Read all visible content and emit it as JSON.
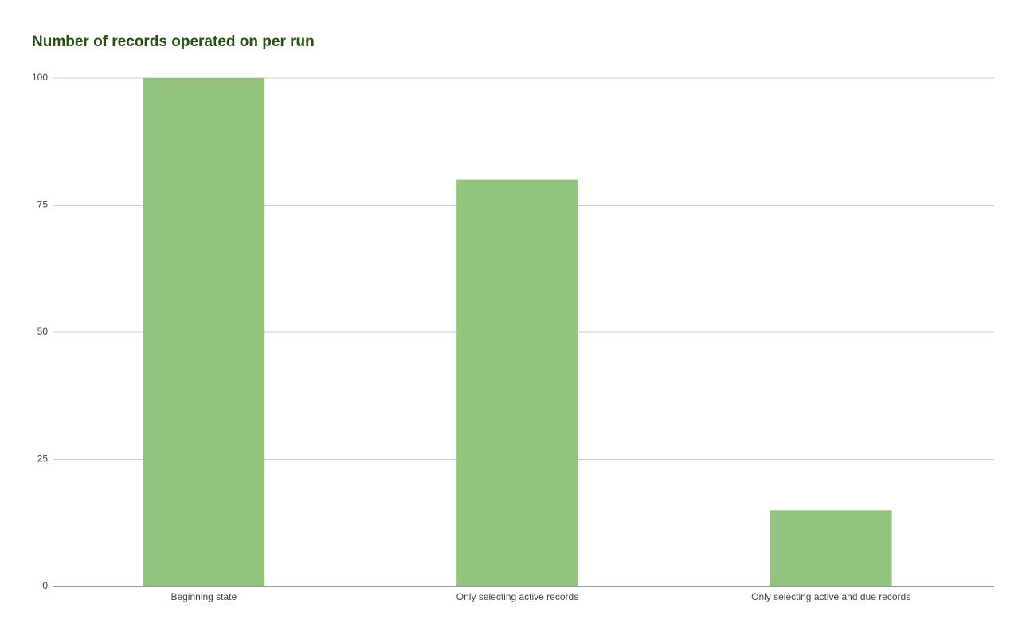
{
  "chart_data": {
    "type": "bar",
    "title": "Number of records operated on per run",
    "categories": [
      "Beginning state",
      "Only selecting active records",
      "Only selecting active and due records"
    ],
    "values": [
      100,
      80,
      15
    ],
    "color": "#93c47d",
    "ylim": [
      0,
      100
    ],
    "yticks": [
      0,
      25,
      50,
      75,
      100
    ],
    "grid": true
  }
}
